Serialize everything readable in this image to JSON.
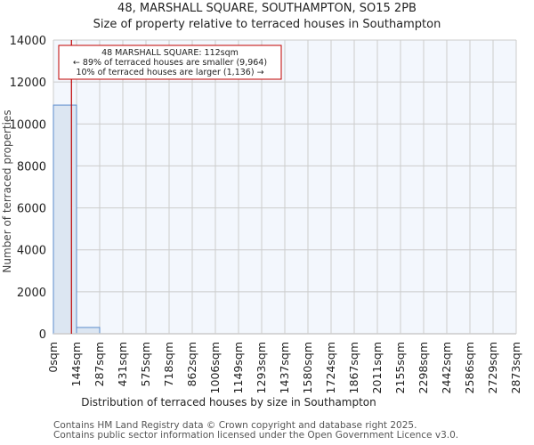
{
  "header": {
    "title": "48, MARSHALL SQUARE, SOUTHAMPTON, SO15 2PB",
    "subtitle": "Size of property relative to terraced houses in Southampton"
  },
  "annotation": {
    "line1": "48 MARSHALL SQUARE: 112sqm",
    "line2": "← 89% of terraced houses are smaller (9,964)",
    "line3": "10% of terraced houses are larger (1,136) →"
  },
  "footer": {
    "line1": "Contains HM Land Registry data © Crown copyright and database right 2025.",
    "line2": "Contains public sector information licensed under the Open Government Licence v3.0."
  },
  "colors": {
    "bar_fill": "#dce6f2",
    "bar_edge": "#5b8ccc",
    "plot_bg": "#f3f7fd",
    "grid": "#cccccc",
    "marker": "#c00000"
  },
  "chart_data": {
    "type": "bar",
    "title": "48, MARSHALL SQUARE, SOUTHAMPTON, SO15 2PB",
    "subtitle": "Size of property relative to terraced houses in Southampton",
    "xlabel": "Distribution of terraced houses by size in Southampton",
    "ylabel": "Number of terraced properties",
    "categories": [
      "0sqm",
      "144sqm",
      "287sqm",
      "431sqm",
      "575sqm",
      "718sqm",
      "862sqm",
      "1006sqm",
      "1149sqm",
      "1293sqm",
      "1437sqm",
      "1580sqm",
      "1724sqm",
      "1867sqm",
      "2011sqm",
      "2155sqm",
      "2298sqm",
      "2442sqm",
      "2586sqm",
      "2729sqm",
      "2873sqm"
    ],
    "bins": [
      {
        "from": 0,
        "to": 144,
        "count": 10900
      },
      {
        "from": 144,
        "to": 287,
        "count": 300
      },
      {
        "from": 287,
        "to": 431,
        "count": 0
      },
      {
        "from": 431,
        "to": 575,
        "count": 0
      },
      {
        "from": 575,
        "to": 718,
        "count": 0
      },
      {
        "from": 718,
        "to": 862,
        "count": 0
      },
      {
        "from": 862,
        "to": 1006,
        "count": 0
      },
      {
        "from": 1006,
        "to": 1149,
        "count": 0
      },
      {
        "from": 1149,
        "to": 1293,
        "count": 0
      },
      {
        "from": 1293,
        "to": 1437,
        "count": 0
      },
      {
        "from": 1437,
        "to": 1580,
        "count": 0
      },
      {
        "from": 1580,
        "to": 1724,
        "count": 0
      },
      {
        "from": 1724,
        "to": 1867,
        "count": 0
      },
      {
        "from": 1867,
        "to": 2011,
        "count": 0
      },
      {
        "from": 2011,
        "to": 2155,
        "count": 0
      },
      {
        "from": 2155,
        "to": 2298,
        "count": 0
      },
      {
        "from": 2298,
        "to": 2442,
        "count": 0
      },
      {
        "from": 2442,
        "to": 2586,
        "count": 0
      },
      {
        "from": 2586,
        "to": 2729,
        "count": 0
      },
      {
        "from": 2729,
        "to": 2873,
        "count": 0
      }
    ],
    "values": [
      10900,
      300,
      0,
      0,
      0,
      0,
      0,
      0,
      0,
      0,
      0,
      0,
      0,
      0,
      0,
      0,
      0,
      0,
      0,
      0
    ],
    "ylim": [
      0,
      14000
    ],
    "yticks": [
      0,
      2000,
      4000,
      6000,
      8000,
      10000,
      12000,
      14000
    ],
    "xlim": [
      0,
      2873
    ],
    "grid": true,
    "legend": null,
    "marker": {
      "value": 112,
      "label": "48 MARSHALL SQUARE: 112sqm"
    },
    "annotations": [
      "48 MARSHALL SQUARE: 112sqm",
      "← 89% of terraced houses are smaller (9,964)",
      "10% of terraced houses are larger (1,136) →"
    ]
  }
}
